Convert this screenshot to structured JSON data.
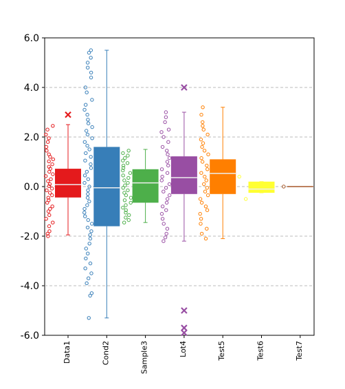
{
  "chart_data": {
    "type": "box",
    "categories": [
      "Data1",
      "Cond2",
      "Sample3",
      "Lot4",
      "Test5",
      "Test6",
      "Test7"
    ],
    "ylim": [
      -6,
      6
    ],
    "yticks": [
      {
        "value": -6,
        "label": "-6.0"
      },
      {
        "value": -4,
        "label": "-4.0"
      },
      {
        "value": -2,
        "label": "-2.0"
      },
      {
        "value": 0,
        "label": "0.0"
      },
      {
        "value": 2,
        "label": "2.0"
      },
      {
        "value": 4,
        "label": "4.0"
      },
      {
        "value": 6,
        "label": "6.0"
      }
    ],
    "grid": true,
    "boxes": [
      {
        "color": "#e41a1c",
        "whisker_low": -1.95,
        "q1": -0.44,
        "median": 0.08,
        "q3": 0.72,
        "whisker_high": 2.5,
        "outliers": [
          2.9
        ],
        "points": [
          2.45,
          2.3,
          2.1,
          1.95,
          1.8,
          1.6,
          1.45,
          1.3,
          1.2,
          1.1,
          1.02,
          0.9,
          0.8,
          0.72,
          0.6,
          0.5,
          0.42,
          0.3,
          0.22,
          0.1,
          0.02,
          -0.08,
          -0.15,
          -0.25,
          -0.35,
          -0.45,
          -0.55,
          -0.65,
          -0.8,
          -0.9,
          -1.0,
          -1.15,
          -1.3,
          -1.45,
          -1.6,
          -1.8,
          -1.9,
          -2.0
        ]
      },
      {
        "color": "#377eb8",
        "whisker_low": -5.3,
        "q1": -1.6,
        "median": -0.05,
        "q3": 1.6,
        "whisker_high": 5.5,
        "outliers": [],
        "points": [
          5.5,
          5.4,
          5.2,
          5.0,
          4.8,
          4.6,
          4.4,
          4.0,
          3.8,
          3.5,
          3.3,
          3.1,
          2.9,
          2.7,
          2.55,
          2.4,
          2.25,
          2.1,
          1.95,
          1.8,
          1.65,
          1.5,
          1.35,
          1.2,
          1.05,
          0.9,
          0.75,
          0.6,
          0.45,
          0.3,
          0.15,
          0.0,
          -0.15,
          -0.3,
          -0.45,
          -0.6,
          -0.75,
          -0.9,
          -1.05,
          -1.2,
          -1.35,
          -1.5,
          -1.65,
          -1.8,
          -1.95,
          -2.1,
          -2.3,
          -2.5,
          -2.7,
          -2.9,
          -3.1,
          -3.3,
          -3.5,
          -3.7,
          -3.9,
          -4.3,
          -4.4,
          -5.3
        ]
      },
      {
        "color": "#4daf4a",
        "whisker_low": -1.45,
        "q1": -0.65,
        "median": 0.15,
        "q3": 0.7,
        "whisker_high": 1.5,
        "outliers": [],
        "points": [
          1.45,
          1.35,
          1.25,
          1.15,
          1.05,
          0.95,
          0.85,
          0.75,
          0.65,
          0.55,
          0.45,
          0.35,
          0.25,
          0.15,
          0.05,
          -0.05,
          -0.15,
          -0.25,
          -0.35,
          -0.45,
          -0.55,
          -0.65,
          -0.75,
          -0.85,
          -0.95,
          -1.05,
          -1.15,
          -1.25,
          -1.35,
          -1.45
        ]
      },
      {
        "color": "#984ea3",
        "whisker_low": -2.2,
        "q1": -0.3,
        "median": 0.36,
        "q3": 1.22,
        "whisker_high": 3.0,
        "outliers": [
          4.0,
          -5.0,
          -5.7,
          -5.9
        ],
        "points": [
          3.0,
          2.8,
          2.6,
          2.3,
          2.2,
          2.0,
          1.8,
          1.6,
          1.45,
          1.3,
          1.15,
          1.0,
          0.85,
          0.7,
          0.55,
          0.4,
          0.25,
          0.1,
          -0.05,
          -0.2,
          -0.35,
          -0.5,
          -0.65,
          -0.8,
          -0.95,
          -1.1,
          -1.3,
          -1.5,
          -1.7,
          -1.9,
          -2.05,
          -2.2
        ]
      },
      {
        "color": "#ff7f00",
        "whisker_low": -2.1,
        "q1": -0.3,
        "median": 0.53,
        "q3": 1.1,
        "whisker_high": 3.2,
        "outliers": [],
        "points": [
          3.2,
          2.9,
          2.6,
          2.45,
          2.3,
          2.1,
          1.9,
          1.75,
          1.6,
          1.45,
          1.3,
          1.15,
          1.0,
          0.85,
          0.7,
          0.55,
          0.4,
          0.25,
          0.1,
          -0.05,
          -0.2,
          -0.35,
          -0.5,
          -0.65,
          -0.8,
          -0.95,
          -1.1,
          -1.3,
          -1.5,
          -1.7,
          -1.9,
          -2.1
        ]
      },
      {
        "color": "#ffff33",
        "whisker_low": -0.25,
        "q1": -0.25,
        "median": -0.1,
        "q3": 0.2,
        "whisker_high": 0.2,
        "outliers": [],
        "points": [
          0.4,
          -0.5
        ]
      },
      {
        "color": "#a65628",
        "whisker_low": 0,
        "q1": 0,
        "median": 0,
        "q3": 0,
        "whisker_high": 0,
        "outliers": [],
        "points": [
          0
        ]
      }
    ]
  }
}
